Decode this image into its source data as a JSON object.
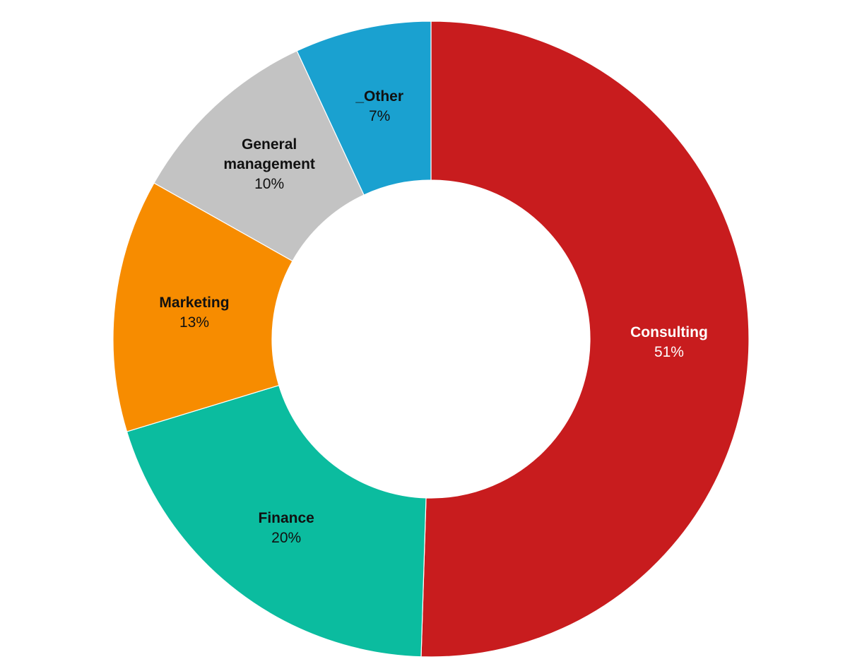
{
  "chart_data": {
    "type": "donut",
    "categories": [
      "Consulting",
      "Finance",
      "Marketing",
      "General management",
      "_Other"
    ],
    "values": [
      51,
      20,
      13,
      10,
      7
    ],
    "value_labels": [
      "51%",
      "20%",
      "13%",
      "10%",
      "7%"
    ],
    "colors": [
      "#c81c1e",
      "#0bbc9f",
      "#f78c00",
      "#c3c3c3",
      "#1aa1d0"
    ],
    "label_colors": [
      "#ffffff",
      "#111111",
      "#111111",
      "#111111",
      "#111111"
    ]
  }
}
